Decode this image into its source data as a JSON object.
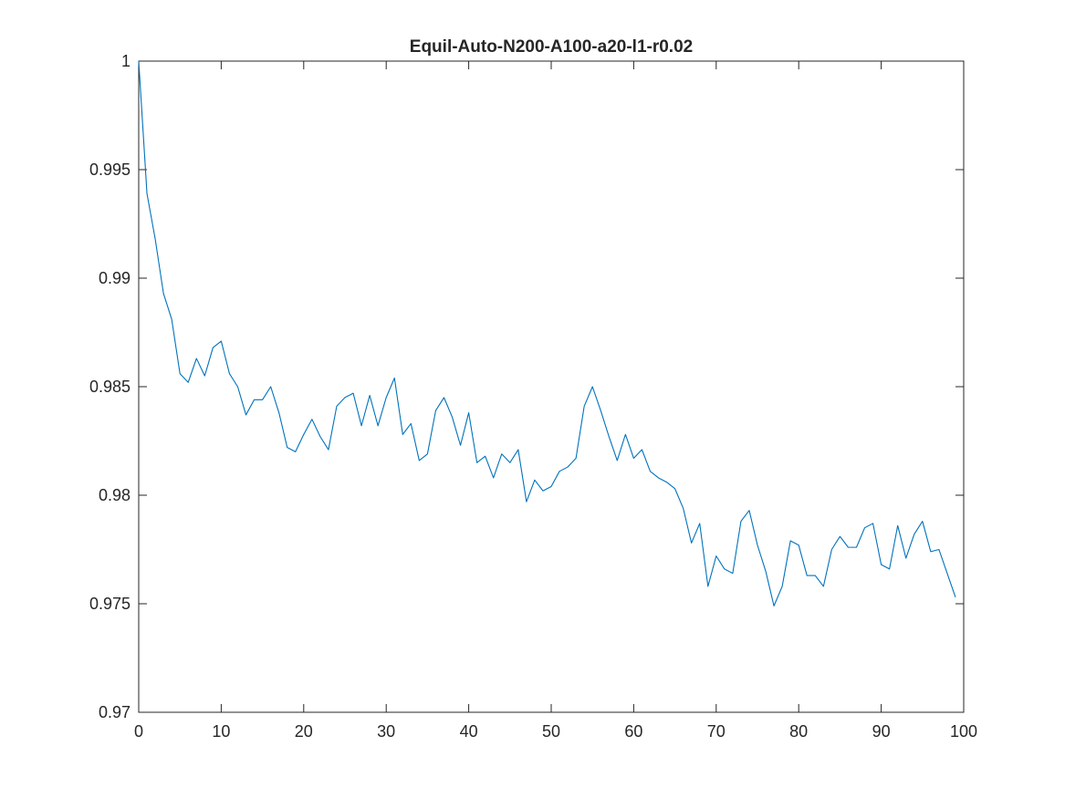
{
  "chart_data": {
    "type": "line",
    "title": "Equil-Auto-N200-A100-a20-l1-r0.02",
    "xlabel": "",
    "ylabel": "",
    "xlim": [
      0,
      100
    ],
    "ylim": [
      0.97,
      1
    ],
    "grid": false,
    "box": true,
    "x_ticks": [
      0,
      10,
      20,
      30,
      40,
      50,
      60,
      70,
      80,
      90,
      100
    ],
    "x_tick_labels": [
      "0",
      "10",
      "20",
      "30",
      "40",
      "50",
      "60",
      "70",
      "80",
      "90",
      "100"
    ],
    "y_ticks": [
      0.97,
      0.975,
      0.98,
      0.985,
      0.99,
      0.995,
      1
    ],
    "y_tick_labels": [
      "0.97",
      "0.975",
      "0.98",
      "0.985",
      "0.99",
      "0.995",
      "1"
    ],
    "series": [
      {
        "color": "#0072bd",
        "x": [
          0,
          1,
          2,
          3,
          4,
          5,
          6,
          7,
          8,
          9,
          10,
          11,
          12,
          13,
          14,
          15,
          16,
          17,
          18,
          19,
          20,
          21,
          22,
          23,
          24,
          25,
          26,
          27,
          28,
          29,
          30,
          31,
          32,
          33,
          34,
          35,
          36,
          37,
          38,
          39,
          40,
          41,
          42,
          43,
          44,
          45,
          46,
          47,
          48,
          49,
          50,
          51,
          52,
          53,
          54,
          55,
          56,
          57,
          58,
          59,
          60,
          61,
          62,
          63,
          64,
          65,
          66,
          67,
          68,
          69,
          70,
          71,
          72,
          73,
          74,
          75,
          76,
          77,
          78,
          79,
          80,
          81,
          82,
          83,
          84,
          85,
          86,
          87,
          88,
          89,
          90,
          91,
          92,
          93,
          94,
          95,
          96,
          97,
          98,
          99
        ],
        "values": [
          1.0,
          0.9939,
          0.9918,
          0.9893,
          0.9881,
          0.9856,
          0.9852,
          0.9863,
          0.9855,
          0.9868,
          0.9871,
          0.9856,
          0.985,
          0.9837,
          0.9844,
          0.9844,
          0.985,
          0.9838,
          0.9822,
          0.982,
          0.9828,
          0.9835,
          0.9827,
          0.9821,
          0.9841,
          0.9845,
          0.9847,
          0.9832,
          0.9846,
          0.9832,
          0.9845,
          0.9854,
          0.9828,
          0.9833,
          0.9816,
          0.9819,
          0.9839,
          0.9845,
          0.9836,
          0.9823,
          0.9838,
          0.9815,
          0.9818,
          0.9808,
          0.9819,
          0.9815,
          0.9821,
          0.9797,
          0.9807,
          0.9802,
          0.9804,
          0.9811,
          0.9813,
          0.9817,
          0.9841,
          0.985,
          0.9839,
          0.9827,
          0.9816,
          0.9828,
          0.9817,
          0.9821,
          0.9811,
          0.9808,
          0.9806,
          0.9803,
          0.9794,
          0.9778,
          0.9787,
          0.9758,
          0.9772,
          0.9766,
          0.9764,
          0.9788,
          0.9793,
          0.9777,
          0.9765,
          0.9749,
          0.9758,
          0.9779,
          0.9777,
          0.9763,
          0.9763,
          0.9758,
          0.9775,
          0.9781,
          0.9776,
          0.9776,
          0.9785,
          0.9787,
          0.9768,
          0.9766,
          0.9786,
          0.9771,
          0.9782,
          0.9788,
          0.9774,
          0.9775,
          0.9764,
          0.9753
        ]
      }
    ]
  }
}
